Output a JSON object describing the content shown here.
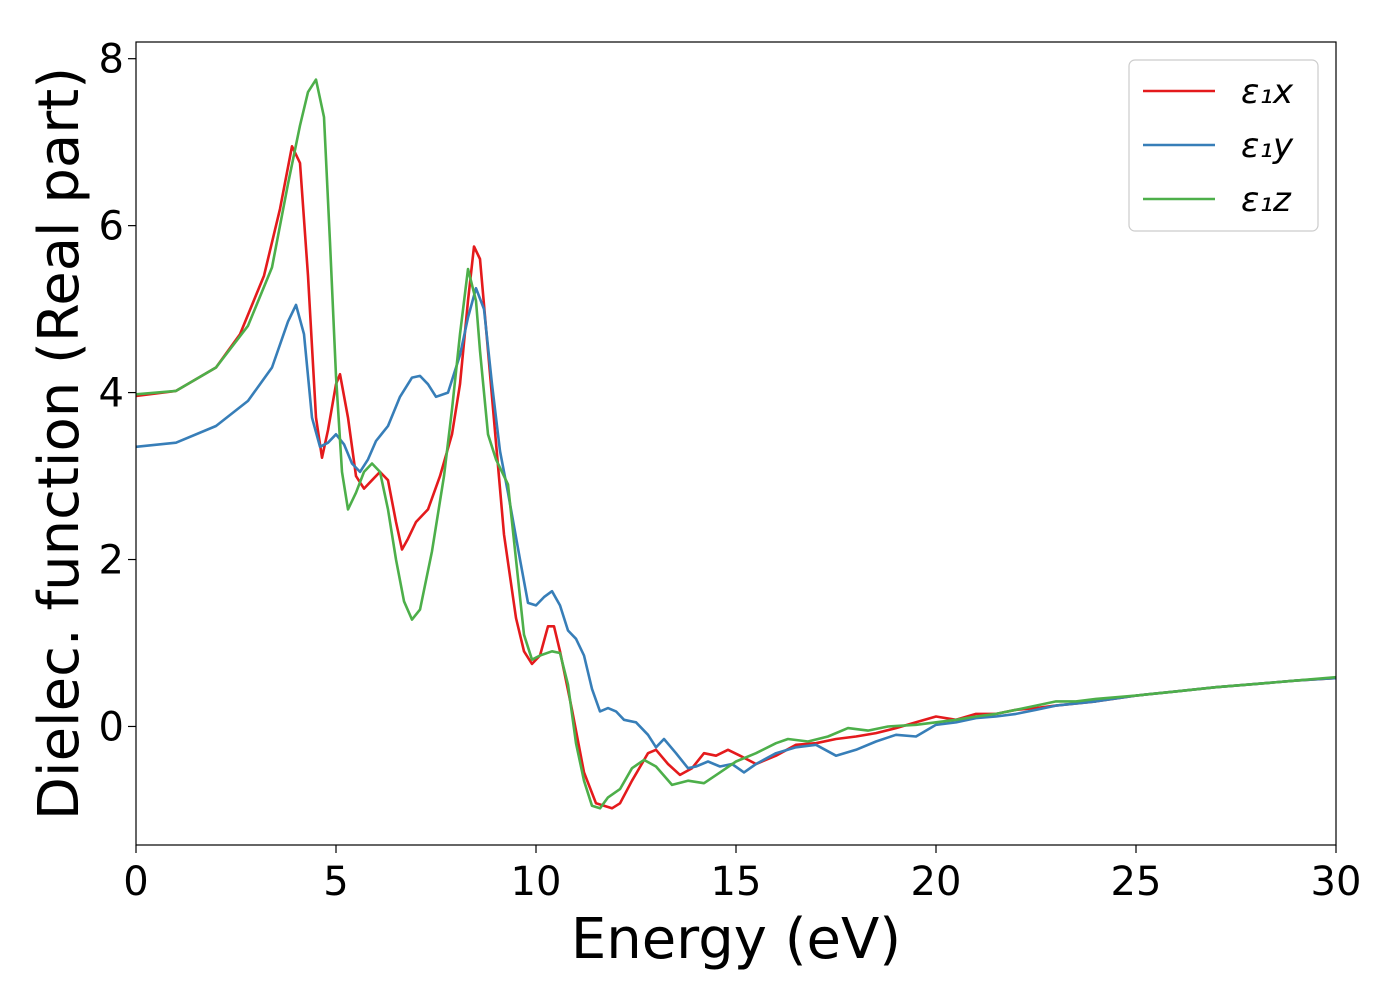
{
  "chart_data": {
    "type": "line",
    "title": "",
    "xlabel": "Energy (eV)",
    "ylabel": "Dielec. function (Real part)",
    "xlim": [
      0,
      30
    ],
    "ylim": [
      -1.42,
      8.2
    ],
    "xticks": [
      0,
      5,
      10,
      15,
      20,
      25,
      30
    ],
    "xtick_labels": [
      "0",
      "5",
      "10",
      "15",
      "20",
      "25",
      "30"
    ],
    "yticks": [
      0,
      2,
      4,
      6,
      8
    ],
    "ytick_labels": [
      "0",
      "2",
      "4",
      "6",
      "8"
    ],
    "grid": false,
    "legend_position": "top-right",
    "series": [
      {
        "name": "ε₁x",
        "color": "#e41a1c",
        "points": [
          [
            0,
            3.96
          ],
          [
            1,
            4.02
          ],
          [
            2,
            4.3
          ],
          [
            2.6,
            4.7
          ],
          [
            3.2,
            5.4
          ],
          [
            3.6,
            6.2
          ],
          [
            3.9,
            6.95
          ],
          [
            4.1,
            6.75
          ],
          [
            4.3,
            5.4
          ],
          [
            4.5,
            3.7
          ],
          [
            4.65,
            3.22
          ],
          [
            4.8,
            3.55
          ],
          [
            5.0,
            4.1
          ],
          [
            5.1,
            4.22
          ],
          [
            5.3,
            3.7
          ],
          [
            5.5,
            3.0
          ],
          [
            5.7,
            2.85
          ],
          [
            5.9,
            2.95
          ],
          [
            6.1,
            3.05
          ],
          [
            6.3,
            2.95
          ],
          [
            6.5,
            2.45
          ],
          [
            6.65,
            2.12
          ],
          [
            6.8,
            2.25
          ],
          [
            7.0,
            2.45
          ],
          [
            7.3,
            2.6
          ],
          [
            7.6,
            3.0
          ],
          [
            7.9,
            3.5
          ],
          [
            8.1,
            4.1
          ],
          [
            8.3,
            5.1
          ],
          [
            8.45,
            5.75
          ],
          [
            8.6,
            5.6
          ],
          [
            8.8,
            4.5
          ],
          [
            9.0,
            3.4
          ],
          [
            9.2,
            2.3
          ],
          [
            9.5,
            1.3
          ],
          [
            9.7,
            0.9
          ],
          [
            9.9,
            0.75
          ],
          [
            10.1,
            0.85
          ],
          [
            10.3,
            1.2
          ],
          [
            10.45,
            1.2
          ],
          [
            10.6,
            0.9
          ],
          [
            10.9,
            0.2
          ],
          [
            11.2,
            -0.55
          ],
          [
            11.5,
            -0.92
          ],
          [
            11.7,
            -0.95
          ],
          [
            11.9,
            -0.98
          ],
          [
            12.1,
            -0.92
          ],
          [
            12.4,
            -0.65
          ],
          [
            12.8,
            -0.32
          ],
          [
            13.0,
            -0.28
          ],
          [
            13.3,
            -0.45
          ],
          [
            13.6,
            -0.58
          ],
          [
            13.9,
            -0.5
          ],
          [
            14.2,
            -0.32
          ],
          [
            14.5,
            -0.35
          ],
          [
            14.8,
            -0.28
          ],
          [
            15.1,
            -0.35
          ],
          [
            15.5,
            -0.45
          ],
          [
            16,
            -0.35
          ],
          [
            16.5,
            -0.22
          ],
          [
            17,
            -0.2
          ],
          [
            17.5,
            -0.15
          ],
          [
            18,
            -0.12
          ],
          [
            18.5,
            -0.08
          ],
          [
            19,
            -0.02
          ],
          [
            19.5,
            0.05
          ],
          [
            20,
            0.12
          ],
          [
            20.5,
            0.08
          ],
          [
            21,
            0.15
          ],
          [
            21.5,
            0.15
          ],
          [
            22,
            0.2
          ],
          [
            22.5,
            0.22
          ],
          [
            23,
            0.25
          ],
          [
            24,
            0.3
          ],
          [
            25,
            0.37
          ],
          [
            26,
            0.42
          ],
          [
            27,
            0.47
          ],
          [
            28,
            0.51
          ],
          [
            29,
            0.55
          ],
          [
            30,
            0.58
          ]
        ]
      },
      {
        "name": "ε₁y",
        "color": "#377eb8",
        "points": [
          [
            0,
            3.35
          ],
          [
            1,
            3.4
          ],
          [
            2,
            3.6
          ],
          [
            2.8,
            3.9
          ],
          [
            3.4,
            4.3
          ],
          [
            3.8,
            4.85
          ],
          [
            4.0,
            5.05
          ],
          [
            4.2,
            4.7
          ],
          [
            4.4,
            3.7
          ],
          [
            4.6,
            3.35
          ],
          [
            4.8,
            3.4
          ],
          [
            5.0,
            3.5
          ],
          [
            5.2,
            3.38
          ],
          [
            5.4,
            3.15
          ],
          [
            5.6,
            3.05
          ],
          [
            5.8,
            3.2
          ],
          [
            6.0,
            3.42
          ],
          [
            6.3,
            3.6
          ],
          [
            6.6,
            3.95
          ],
          [
            6.9,
            4.18
          ],
          [
            7.1,
            4.2
          ],
          [
            7.3,
            4.1
          ],
          [
            7.5,
            3.95
          ],
          [
            7.8,
            4.0
          ],
          [
            8.1,
            4.45
          ],
          [
            8.3,
            4.9
          ],
          [
            8.5,
            5.25
          ],
          [
            8.7,
            5.0
          ],
          [
            8.9,
            4.1
          ],
          [
            9.1,
            3.3
          ],
          [
            9.3,
            2.8
          ],
          [
            9.6,
            2.0
          ],
          [
            9.8,
            1.48
          ],
          [
            10.0,
            1.45
          ],
          [
            10.2,
            1.55
          ],
          [
            10.4,
            1.62
          ],
          [
            10.6,
            1.45
          ],
          [
            10.8,
            1.15
          ],
          [
            11.0,
            1.05
          ],
          [
            11.2,
            0.85
          ],
          [
            11.4,
            0.45
          ],
          [
            11.6,
            0.18
          ],
          [
            11.8,
            0.22
          ],
          [
            12.0,
            0.18
          ],
          [
            12.2,
            0.08
          ],
          [
            12.5,
            0.05
          ],
          [
            12.8,
            -0.1
          ],
          [
            13.0,
            -0.25
          ],
          [
            13.2,
            -0.15
          ],
          [
            13.5,
            -0.32
          ],
          [
            13.8,
            -0.5
          ],
          [
            14.0,
            -0.48
          ],
          [
            14.3,
            -0.42
          ],
          [
            14.6,
            -0.48
          ],
          [
            14.9,
            -0.45
          ],
          [
            15.2,
            -0.55
          ],
          [
            15.5,
            -0.45
          ],
          [
            16,
            -0.32
          ],
          [
            16.5,
            -0.25
          ],
          [
            17,
            -0.22
          ],
          [
            17.5,
            -0.35
          ],
          [
            18,
            -0.28
          ],
          [
            18.5,
            -0.18
          ],
          [
            19,
            -0.1
          ],
          [
            19.5,
            -0.12
          ],
          [
            20,
            0.02
          ],
          [
            20.5,
            0.05
          ],
          [
            21,
            0.1
          ],
          [
            21.5,
            0.12
          ],
          [
            22,
            0.15
          ],
          [
            22.5,
            0.2
          ],
          [
            23,
            0.25
          ],
          [
            24,
            0.3
          ],
          [
            25,
            0.37
          ],
          [
            26,
            0.42
          ],
          [
            27,
            0.47
          ],
          [
            28,
            0.51
          ],
          [
            29,
            0.55
          ],
          [
            30,
            0.58
          ]
        ]
      },
      {
        "name": "ε₁z",
        "color": "#4daf4a",
        "points": [
          [
            0,
            3.98
          ],
          [
            1,
            4.02
          ],
          [
            2,
            4.3
          ],
          [
            2.8,
            4.8
          ],
          [
            3.4,
            5.5
          ],
          [
            3.8,
            6.5
          ],
          [
            4.1,
            7.2
          ],
          [
            4.3,
            7.6
          ],
          [
            4.5,
            7.75
          ],
          [
            4.7,
            7.3
          ],
          [
            4.85,
            5.8
          ],
          [
            5.0,
            4.2
          ],
          [
            5.15,
            3.05
          ],
          [
            5.3,
            2.6
          ],
          [
            5.5,
            2.8
          ],
          [
            5.7,
            3.05
          ],
          [
            5.9,
            3.15
          ],
          [
            6.1,
            3.05
          ],
          [
            6.3,
            2.6
          ],
          [
            6.5,
            2.0
          ],
          [
            6.7,
            1.5
          ],
          [
            6.9,
            1.28
          ],
          [
            7.1,
            1.4
          ],
          [
            7.4,
            2.1
          ],
          [
            7.7,
            3.0
          ],
          [
            7.9,
            3.8
          ],
          [
            8.1,
            4.7
          ],
          [
            8.3,
            5.48
          ],
          [
            8.5,
            5.1
          ],
          [
            8.6,
            4.5
          ],
          [
            8.8,
            3.5
          ],
          [
            9.0,
            3.2
          ],
          [
            9.3,
            2.9
          ],
          [
            9.5,
            2.0
          ],
          [
            9.7,
            1.1
          ],
          [
            9.9,
            0.8
          ],
          [
            10.1,
            0.85
          ],
          [
            10.4,
            0.9
          ],
          [
            10.6,
            0.88
          ],
          [
            10.8,
            0.5
          ],
          [
            11.0,
            -0.2
          ],
          [
            11.2,
            -0.65
          ],
          [
            11.4,
            -0.95
          ],
          [
            11.6,
            -0.98
          ],
          [
            11.8,
            -0.85
          ],
          [
            12.1,
            -0.75
          ],
          [
            12.4,
            -0.5
          ],
          [
            12.7,
            -0.4
          ],
          [
            13.0,
            -0.48
          ],
          [
            13.4,
            -0.7
          ],
          [
            13.8,
            -0.65
          ],
          [
            14.2,
            -0.68
          ],
          [
            14.6,
            -0.55
          ],
          [
            15,
            -0.42
          ],
          [
            15.5,
            -0.32
          ],
          [
            16,
            -0.2
          ],
          [
            16.3,
            -0.15
          ],
          [
            16.8,
            -0.18
          ],
          [
            17.3,
            -0.12
          ],
          [
            17.8,
            -0.02
          ],
          [
            18.3,
            -0.05
          ],
          [
            18.8,
            0.0
          ],
          [
            19.5,
            0.02
          ],
          [
            20,
            0.05
          ],
          [
            20.5,
            0.08
          ],
          [
            21,
            0.12
          ],
          [
            21.5,
            0.15
          ],
          [
            22,
            0.2
          ],
          [
            22.5,
            0.25
          ],
          [
            23,
            0.3
          ],
          [
            23.5,
            0.3
          ],
          [
            24,
            0.33
          ],
          [
            25,
            0.37
          ],
          [
            26,
            0.42
          ],
          [
            27,
            0.47
          ],
          [
            28,
            0.51
          ],
          [
            29,
            0.55
          ],
          [
            30,
            0.59
          ]
        ]
      }
    ]
  }
}
